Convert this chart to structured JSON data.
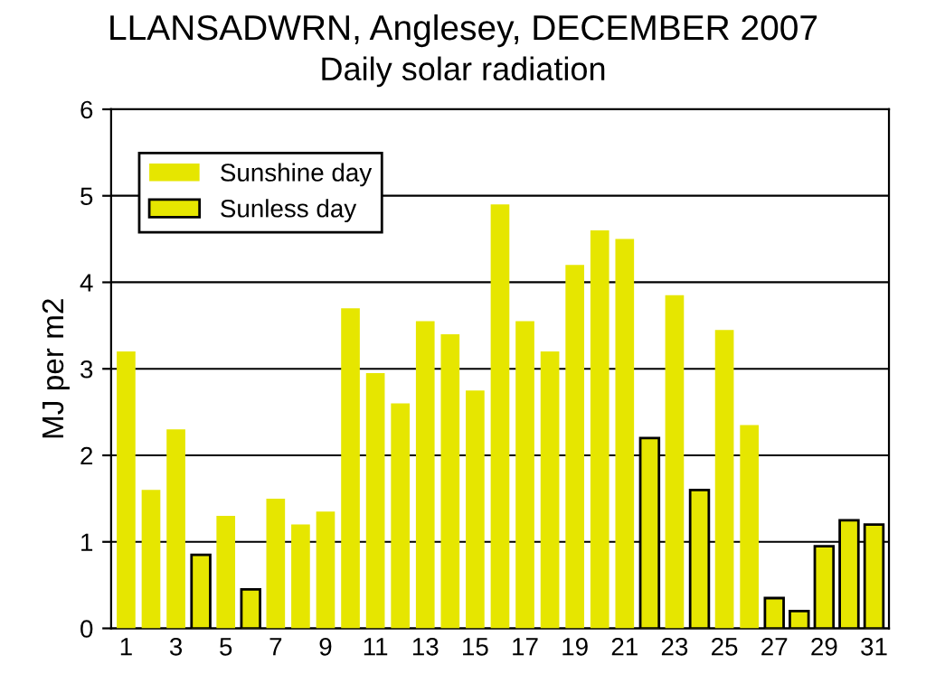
{
  "chart_data": {
    "type": "bar",
    "title": "LLANSADWRN, Anglesey, DECEMBER 2007",
    "subtitle": "Daily solar radiation",
    "ylabel": "MJ per m2",
    "categories": [
      "1",
      null,
      "3",
      null,
      "5",
      null,
      "7",
      null,
      "9",
      null,
      "11",
      null,
      "13",
      null,
      "15",
      null,
      "17",
      null,
      "19",
      null,
      "21",
      null,
      "23",
      null,
      "25",
      null,
      "27",
      null,
      "29",
      null,
      "31"
    ],
    "series": [
      {
        "name": "Sunshine day",
        "color": "#e6e600",
        "values": [
          3.2,
          1.6,
          2.3,
          null,
          1.3,
          null,
          1.5,
          1.2,
          1.35,
          3.7,
          2.95,
          2.6,
          3.55,
          3.4,
          2.75,
          4.9,
          3.55,
          3.2,
          4.2,
          4.6,
          4.5,
          null,
          3.85,
          null,
          3.45,
          2.35,
          null,
          null,
          null,
          null,
          null
        ]
      },
      {
        "name": "Sunless day",
        "color": "#e6e600",
        "values": [
          null,
          null,
          null,
          0.85,
          null,
          0.45,
          null,
          null,
          null,
          null,
          null,
          null,
          null,
          null,
          null,
          null,
          null,
          null,
          null,
          null,
          null,
          2.2,
          null,
          1.6,
          null,
          null,
          0.35,
          0.2,
          0.95,
          1.25,
          1.2
        ]
      }
    ],
    "ylim": [
      0,
      6
    ],
    "yticks": [
      0,
      1,
      2,
      3,
      4,
      5,
      6
    ],
    "grid": "y",
    "legend": "top left"
  }
}
